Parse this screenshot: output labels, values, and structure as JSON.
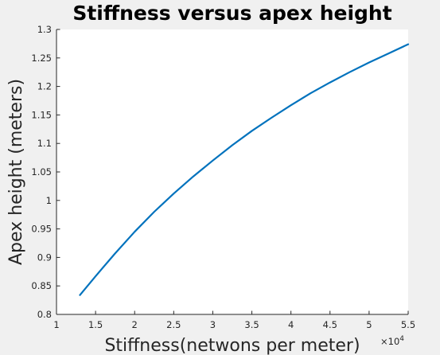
{
  "chart_data": {
    "type": "line",
    "title": "Stiffness versus apex height",
    "xlabel": "Stiffness(netwons per meter)",
    "ylabel": "Apex height (meters)",
    "x_multiplier": {
      "base": "×10",
      "exponent": "4"
    },
    "xlim": [
      1,
      5.5
    ],
    "ylim": [
      0.8,
      1.3
    ],
    "x_ticks": [
      1,
      1.5,
      2,
      2.5,
      3,
      3.5,
      4,
      4.5,
      5,
      5.5
    ],
    "x_tick_labels": [
      "1",
      "1.5",
      "2",
      "2.5",
      "3",
      "3.5",
      "4",
      "4.5",
      "5",
      "5.5"
    ],
    "y_ticks": [
      0.8,
      0.85,
      0.9,
      0.95,
      1,
      1.05,
      1.1,
      1.15,
      1.2,
      1.25,
      1.3
    ],
    "y_tick_labels": [
      "0.8",
      "0.85",
      "0.9",
      "0.95",
      "1",
      "1.05",
      "1.1",
      "1.15",
      "1.2",
      "1.25",
      "1.3"
    ],
    "grid": false,
    "series": [
      {
        "color": "#0072bd",
        "x": [
          1.3,
          1.5,
          1.75,
          2,
          2.25,
          2.5,
          2.75,
          3,
          3.25,
          3.5,
          3.75,
          4,
          4.25,
          4.5,
          4.75,
          5,
          5.25,
          5.5
        ],
        "y": [
          0.834,
          0.867,
          0.907,
          0.945,
          0.98,
          1.012,
          1.042,
          1.07,
          1.097,
          1.122,
          1.145,
          1.167,
          1.188,
          1.207,
          1.225,
          1.242,
          1.258,
          1.274
        ]
      }
    ]
  }
}
